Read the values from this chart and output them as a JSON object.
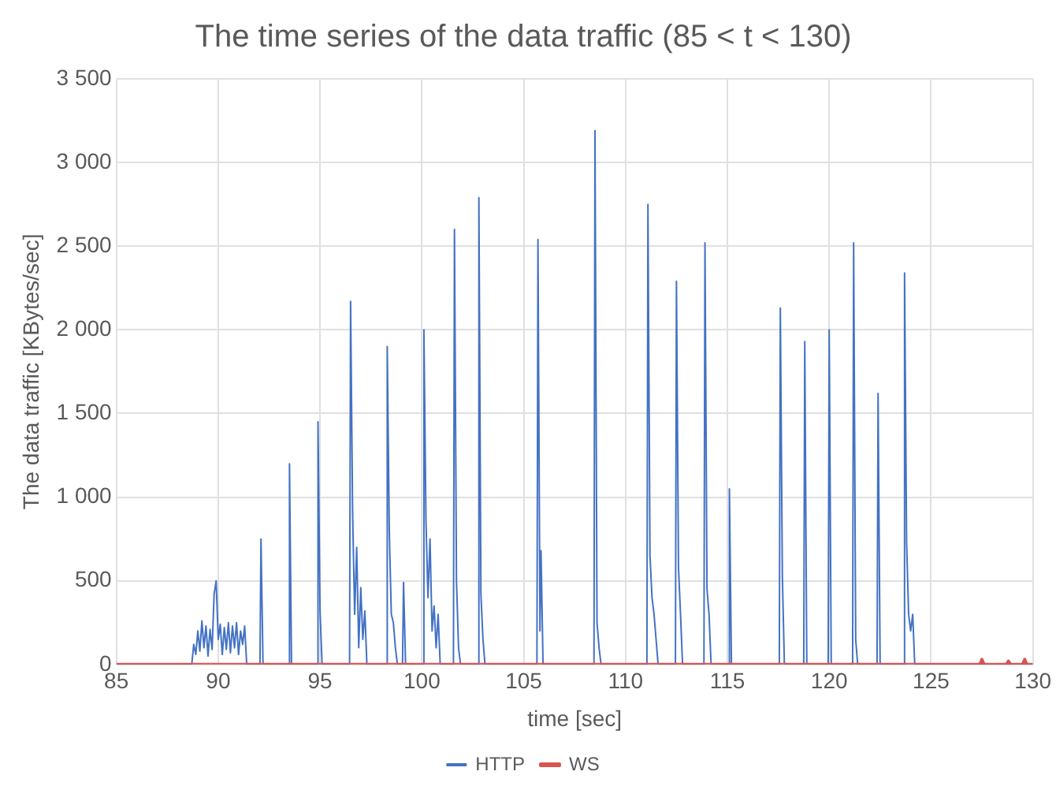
{
  "chart_data": {
    "type": "line",
    "title": "The time series of the data traffic (85 < t < 130)",
    "xlabel": "time [sec]",
    "ylabel": "The data traffic [KBytes/sec]",
    "xlim": [
      85,
      130
    ],
    "xticks": [
      85,
      90,
      95,
      100,
      105,
      110,
      115,
      120,
      125,
      130
    ],
    "ylim": [
      0,
      3500
    ],
    "yticks": [
      0,
      500,
      {
        "value": 1000,
        "label": "1 000"
      },
      {
        "value": 1500,
        "label": "1 500"
      },
      {
        "value": 2000,
        "label": "2 000"
      },
      {
        "value": 2500,
        "label": "2 500"
      },
      {
        "value": 3000,
        "label": "3 000"
      },
      {
        "value": 3500,
        "label": "3 500"
      }
    ],
    "grid": true,
    "legend": "bottom",
    "marker": "none",
    "line_style": "solid",
    "series": [
      {
        "name": "HTTP",
        "color": "#4472c4",
        "x": [
          85,
          88.7,
          88.8,
          88.9,
          89.0,
          89.1,
          89.2,
          89.3,
          89.4,
          89.5,
          89.6,
          89.7,
          89.8,
          89.9,
          90.0,
          90.1,
          90.2,
          90.3,
          90.4,
          90.5,
          90.6,
          90.7,
          90.8,
          90.9,
          91.0,
          91.1,
          91.2,
          91.3,
          91.4,
          92.05,
          92.1,
          92.2,
          93.45,
          93.5,
          93.6,
          94.85,
          94.9,
          95.0,
          95.1,
          96.45,
          96.5,
          96.6,
          96.7,
          96.8,
          96.9,
          97.0,
          97.1,
          97.2,
          97.3,
          98.25,
          98.3,
          98.4,
          98.5,
          98.6,
          98.7,
          98.8,
          99.05,
          99.1,
          99.2,
          100.05,
          100.1,
          100.2,
          100.3,
          100.4,
          100.5,
          100.6,
          100.7,
          100.8,
          100.9,
          101.55,
          101.6,
          101.7,
          101.8,
          101.9,
          102.75,
          102.8,
          102.9,
          103.0,
          103.1,
          105.65,
          105.7,
          105.8,
          105.85,
          105.95,
          108.45,
          108.5,
          108.6,
          108.7,
          108.8,
          111.05,
          111.1,
          111.2,
          111.3,
          111.4,
          111.5,
          111.6,
          112.45,
          112.5,
          112.6,
          112.7,
          112.8,
          113.85,
          113.9,
          114.0,
          114.1,
          114.2,
          115.05,
          115.1,
          115.2,
          117.55,
          117.6,
          117.7,
          117.8,
          118.75,
          118.8,
          118.9,
          119.95,
          120.0,
          120.1,
          121.15,
          121.2,
          121.3,
          121.4,
          122.35,
          122.4,
          122.5,
          123.65,
          123.7,
          123.8,
          123.9,
          124.0,
          124.1,
          124.2,
          130
        ],
        "values": [
          0,
          0,
          120,
          60,
          200,
          80,
          260,
          100,
          230,
          50,
          210,
          90,
          420,
          500,
          150,
          240,
          60,
          220,
          90,
          250,
          70,
          230,
          100,
          250,
          60,
          200,
          120,
          230,
          0,
          0,
          750,
          0,
          0,
          1200,
          0,
          0,
          1450,
          320,
          0,
          0,
          2170,
          900,
          300,
          700,
          100,
          460,
          150,
          320,
          0,
          0,
          1900,
          800,
          300,
          250,
          100,
          0,
          0,
          490,
          0,
          0,
          2000,
          870,
          400,
          750,
          200,
          350,
          100,
          300,
          0,
          0,
          2600,
          500,
          100,
          0,
          0,
          2790,
          420,
          150,
          0,
          0,
          2540,
          200,
          680,
          0,
          0,
          3190,
          250,
          100,
          0,
          0,
          2750,
          650,
          400,
          300,
          150,
          0,
          0,
          2290,
          580,
          300,
          0,
          0,
          2520,
          450,
          300,
          0,
          0,
          1050,
          0,
          0,
          2130,
          530,
          0,
          0,
          1930,
          0,
          0,
          2000,
          0,
          0,
          2520,
          150,
          0,
          0,
          1620,
          0,
          0,
          2340,
          730,
          300,
          200,
          300,
          0,
          0
        ]
      },
      {
        "name": "WS",
        "color": "#d9534f",
        "x": [
          85,
          127.4,
          127.5,
          127.6,
          128.7,
          128.8,
          128.9,
          129.5,
          129.6,
          129.7,
          130
        ],
        "values": [
          0,
          0,
          30,
          0,
          0,
          20,
          0,
          0,
          30,
          0,
          0
        ]
      }
    ]
  }
}
